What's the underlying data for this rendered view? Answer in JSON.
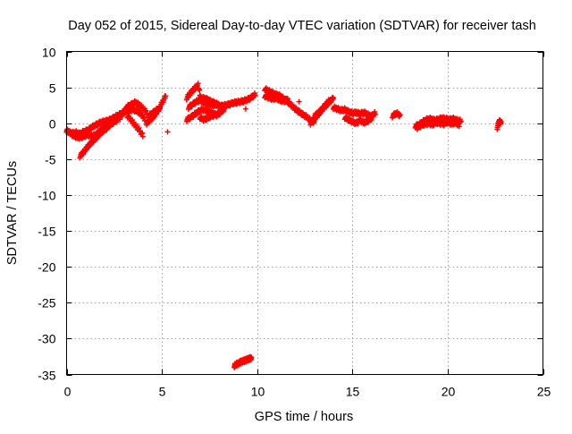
{
  "chart_data": {
    "type": "scatter",
    "title": "Day 052 of 2015, Sidereal Day-to-day VTEC variation (SDTVAR) for receiver tash",
    "xlabel": "GPS time / hours",
    "ylabel": "SDTVAR / TECUs",
    "xlim": [
      0,
      25
    ],
    "ylim": [
      -35,
      10
    ],
    "x_ticks": [
      0,
      5,
      10,
      15,
      20,
      25
    ],
    "y_ticks": [
      10,
      5,
      0,
      -5,
      -10,
      -15,
      -20,
      -25,
      -30,
      -35
    ],
    "grid": true,
    "marker": "plus",
    "color": "#ff0000",
    "series": [
      {
        "name": "SDTVAR",
        "segments": [
          {
            "x": [
              0.0,
              0.1,
              0.3,
              0.5,
              0.7,
              0.9,
              1.1,
              1.3,
              1.5,
              1.7,
              1.9,
              2.1,
              2.3,
              2.5,
              2.7,
              2.9,
              3.1,
              3.3,
              3.5,
              3.7,
              3.9,
              4.1
            ],
            "y": [
              -1.0,
              -1.2,
              -1.4,
              -1.3,
              -1.5,
              -1.2,
              -1.0,
              -0.6,
              -0.3,
              0.0,
              0.2,
              0.3,
              0.5,
              0.8,
              1.1,
              1.4,
              1.6,
              1.8,
              1.9,
              1.7,
              1.3,
              0.6
            ]
          },
          {
            "x": [
              0.3,
              0.5,
              0.7,
              0.9,
              1.1,
              1.3,
              1.5,
              1.7,
              1.9,
              2.1,
              2.3
            ],
            "y": [
              -1.6,
              -1.9,
              -2.0,
              -1.8,
              -1.6,
              -1.8,
              -1.7,
              -1.2,
              -0.7,
              -0.3,
              0.1
            ]
          },
          {
            "x": [
              0.7,
              0.9,
              1.1,
              1.3,
              1.5,
              1.7,
              1.9,
              2.1,
              2.3,
              2.5,
              2.7
            ],
            "y": [
              -4.6,
              -4.0,
              -3.3,
              -2.7,
              -2.2,
              -1.6,
              -1.1,
              -0.7,
              -0.2,
              0.2,
              0.5
            ]
          },
          {
            "x": [
              2.8,
              3.0,
              3.2,
              3.4,
              3.6,
              3.8,
              4.0,
              4.2
            ],
            "y": [
              0.8,
              1.6,
              2.3,
              2.6,
              2.9,
              2.6,
              2.1,
              1.5
            ]
          },
          {
            "x": [
              3.2,
              3.4,
              3.6,
              3.8,
              4.0
            ],
            "y": [
              1.0,
              0.4,
              -0.3,
              -0.9,
              -1.7
            ]
          },
          {
            "x": [
              4.2,
              4.4,
              4.6,
              4.8,
              5.0,
              5.2
            ],
            "y": [
              0.0,
              0.5,
              1.0,
              1.8,
              2.8,
              3.8
            ]
          },
          {
            "x": [
              4.3,
              4.5,
              4.7,
              4.9
            ],
            "y": [
              1.0,
              1.4,
              1.8,
              2.0
            ]
          },
          {
            "x": [
              5.3
            ],
            "y": [
              -1.2
            ]
          },
          {
            "x": [
              6.3,
              6.5,
              6.7,
              6.9,
              7.1,
              7.3,
              7.5,
              7.7,
              7.9,
              8.1,
              8.3,
              8.5,
              8.7,
              8.9,
              9.1,
              9.3,
              9.5,
              9.7,
              9.9
            ],
            "y": [
              3.5,
              4.2,
              4.8,
              5.3,
              3.0,
              2.8,
              2.6,
              2.5,
              2.6,
              2.4,
              2.5,
              2.6,
              2.8,
              2.9,
              3.0,
              3.1,
              3.3,
              3.6,
              4.0
            ]
          },
          {
            "x": [
              6.3,
              6.5,
              6.7,
              6.9,
              7.1,
              7.3,
              7.5,
              7.7,
              7.9,
              8.1,
              8.3
            ],
            "y": [
              0.5,
              0.8,
              1.2,
              1.6,
              1.9,
              1.8,
              1.6,
              1.3,
              1.1,
              1.6,
              2.0
            ]
          },
          {
            "x": [
              6.4,
              6.6,
              6.8,
              7.0,
              7.2,
              7.4,
              7.6,
              7.8,
              8.0
            ],
            "y": [
              2.2,
              2.6,
              3.0,
              3.2,
              3.5,
              3.3,
              3.0,
              2.8,
              2.5
            ]
          },
          {
            "x": [
              7.0,
              7.2,
              7.4,
              7.6,
              7.8,
              8.0
            ],
            "y": [
              0.8,
              0.5,
              0.7,
              1.0,
              1.2,
              1.4
            ]
          },
          {
            "x": [
              9.4
            ],
            "y": [
              2.0
            ]
          },
          {
            "x": [
              8.8,
              8.9,
              9.0,
              9.1,
              9.2,
              9.3,
              9.4,
              9.5,
              9.6,
              9.7
            ],
            "y": [
              -33.8,
              -33.6,
              -33.5,
              -33.3,
              -33.2,
              -33.1,
              -33.0,
              -32.9,
              -32.8,
              -32.7
            ]
          },
          {
            "x": [
              10.4,
              10.6,
              10.8,
              11.0,
              11.2,
              11.4,
              11.6,
              11.8,
              12.0,
              12.2,
              12.4,
              12.6,
              12.8,
              13.0
            ],
            "y": [
              4.8,
              4.5,
              4.2,
              4.0,
              3.8,
              3.4,
              3.0,
              2.5,
              2.0,
              1.6,
              1.2,
              0.9,
              0.4,
              0.1
            ]
          },
          {
            "x": [
              10.4,
              10.6,
              10.8,
              11.0,
              11.2,
              11.4,
              11.6
            ],
            "y": [
              3.8,
              3.6,
              3.4,
              3.5,
              3.2,
              3.1,
              3.3
            ]
          },
          {
            "x": [
              12.2
            ],
            "y": [
              3.0
            ]
          },
          {
            "x": [
              12.8,
              13.0,
              13.2,
              13.4,
              13.6,
              13.8
            ],
            "y": [
              0.0,
              0.6,
              1.2,
              1.8,
              2.6,
              3.2
            ]
          },
          {
            "x": [
              13.0,
              13.2,
              13.4,
              13.6,
              13.8,
              14.0
            ],
            "y": [
              1.0,
              1.4,
              2.0,
              2.4,
              3.0,
              3.5
            ]
          },
          {
            "x": [
              14.0,
              14.2,
              14.4,
              14.6,
              14.8,
              15.0,
              15.2,
              15.4,
              15.6,
              15.8,
              16.0,
              16.2
            ],
            "y": [
              2.2,
              2.0,
              1.8,
              1.9,
              1.6,
              1.4,
              1.5,
              1.3,
              1.5,
              1.2,
              1.0,
              1.4
            ]
          },
          {
            "x": [
              14.6,
              14.8,
              15.0,
              15.2,
              15.4,
              15.6,
              15.8,
              16.0
            ],
            "y": [
              0.8,
              0.5,
              0.2,
              0.0,
              0.4,
              0.1,
              0.3,
              0.7
            ]
          },
          {
            "x": [
              17.1,
              17.3,
              17.5
            ],
            "y": [
              1.0,
              1.4,
              1.1
            ]
          },
          {
            "x": [
              18.3,
              18.5,
              18.7,
              18.9,
              19.1,
              19.3,
              19.5,
              19.7,
              19.9,
              20.1,
              20.3,
              20.5,
              20.7
            ],
            "y": [
              -0.4,
              -0.2,
              0.2,
              0.5,
              0.6,
              0.4,
              0.5,
              0.7,
              0.6,
              0.5,
              0.6,
              0.4,
              0.3
            ]
          },
          {
            "x": [
              18.4,
              18.6,
              18.8,
              19.0,
              19.2,
              19.4,
              19.6,
              19.8,
              20.0,
              20.2,
              20.4,
              20.6
            ],
            "y": [
              -0.6,
              -0.3,
              -0.1,
              0.0,
              -0.2,
              0.1,
              0.0,
              -0.1,
              0.2,
              -0.1,
              0.1,
              -0.3
            ]
          },
          {
            "x": [
              22.6,
              22.7,
              22.8
            ],
            "y": [
              -0.6,
              0.3,
              0.1
            ]
          }
        ]
      }
    ]
  }
}
